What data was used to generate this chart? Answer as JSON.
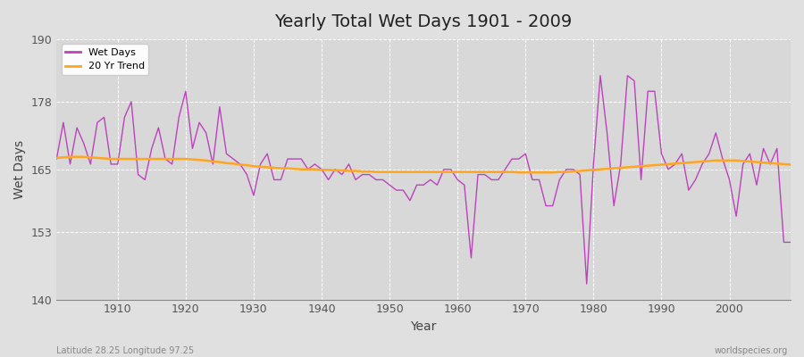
{
  "title": "Yearly Total Wet Days 1901 - 2009",
  "xlabel": "Year",
  "ylabel": "Wet Days",
  "xlim": [
    1901,
    2009
  ],
  "ylim": [
    140,
    190
  ],
  "yticks": [
    140,
    153,
    165,
    178,
    190
  ],
  "xticks": [
    1910,
    1920,
    1930,
    1940,
    1950,
    1960,
    1970,
    1980,
    1990,
    2000
  ],
  "wet_days_color": "#BB44BB",
  "trend_color": "#FFA520",
  "bg_color": "#E0E0E0",
  "plot_bg_color": "#D8D8D8",
  "grid_color": "#FFFFFF",
  "legend_labels": [
    "Wet Days",
    "20 Yr Trend"
  ],
  "footer_left": "Latitude 28.25 Longitude 97.25",
  "footer_right": "worldspecies.org",
  "wet_days": [
    167,
    174,
    166,
    173,
    170,
    166,
    174,
    175,
    166,
    166,
    175,
    178,
    164,
    163,
    169,
    173,
    167,
    166,
    175,
    180,
    169,
    174,
    172,
    166,
    177,
    168,
    167,
    166,
    164,
    160,
    166,
    168,
    163,
    163,
    167,
    167,
    167,
    165,
    166,
    165,
    163,
    165,
    164,
    166,
    163,
    164,
    164,
    163,
    163,
    162,
    161,
    161,
    159,
    162,
    162,
    163,
    162,
    165,
    165,
    163,
    162,
    148,
    164,
    164,
    163,
    163,
    165,
    167,
    167,
    168,
    163,
    163,
    158,
    158,
    163,
    165,
    165,
    164,
    143,
    166,
    183,
    172,
    158,
    166,
    183,
    182,
    163,
    180,
    180,
    168,
    165,
    166,
    168,
    161,
    163,
    166,
    168,
    172,
    167,
    163,
    156,
    166,
    168,
    162,
    169,
    166,
    169,
    151,
    151
  ],
  "trend": [
    167.2,
    167.3,
    167.4,
    167.4,
    167.4,
    167.3,
    167.2,
    167.1,
    167.0,
    167.0,
    167.0,
    167.0,
    167.0,
    167.0,
    167.0,
    167.0,
    167.0,
    167.0,
    167.0,
    167.0,
    166.9,
    166.8,
    166.7,
    166.5,
    166.4,
    166.2,
    166.1,
    165.9,
    165.8,
    165.6,
    165.5,
    165.4,
    165.3,
    165.2,
    165.2,
    165.1,
    165.0,
    165.0,
    165.0,
    164.9,
    164.9,
    164.8,
    164.8,
    164.7,
    164.7,
    164.6,
    164.6,
    164.5,
    164.5,
    164.5,
    164.5,
    164.5,
    164.5,
    164.5,
    164.5,
    164.5,
    164.5,
    164.5,
    164.5,
    164.5,
    164.5,
    164.5,
    164.5,
    164.5,
    164.5,
    164.5,
    164.5,
    164.5,
    164.4,
    164.4,
    164.4,
    164.4,
    164.4,
    164.4,
    164.5,
    164.5,
    164.6,
    164.7,
    164.8,
    164.9,
    165.0,
    165.1,
    165.2,
    165.3,
    165.4,
    165.5,
    165.6,
    165.7,
    165.8,
    165.9,
    166.0,
    166.1,
    166.2,
    166.3,
    166.4,
    166.5,
    166.6,
    166.7,
    166.7,
    166.7,
    166.7,
    166.6,
    166.5,
    166.4,
    166.3,
    166.2,
    166.1,
    166.0,
    165.9
  ]
}
